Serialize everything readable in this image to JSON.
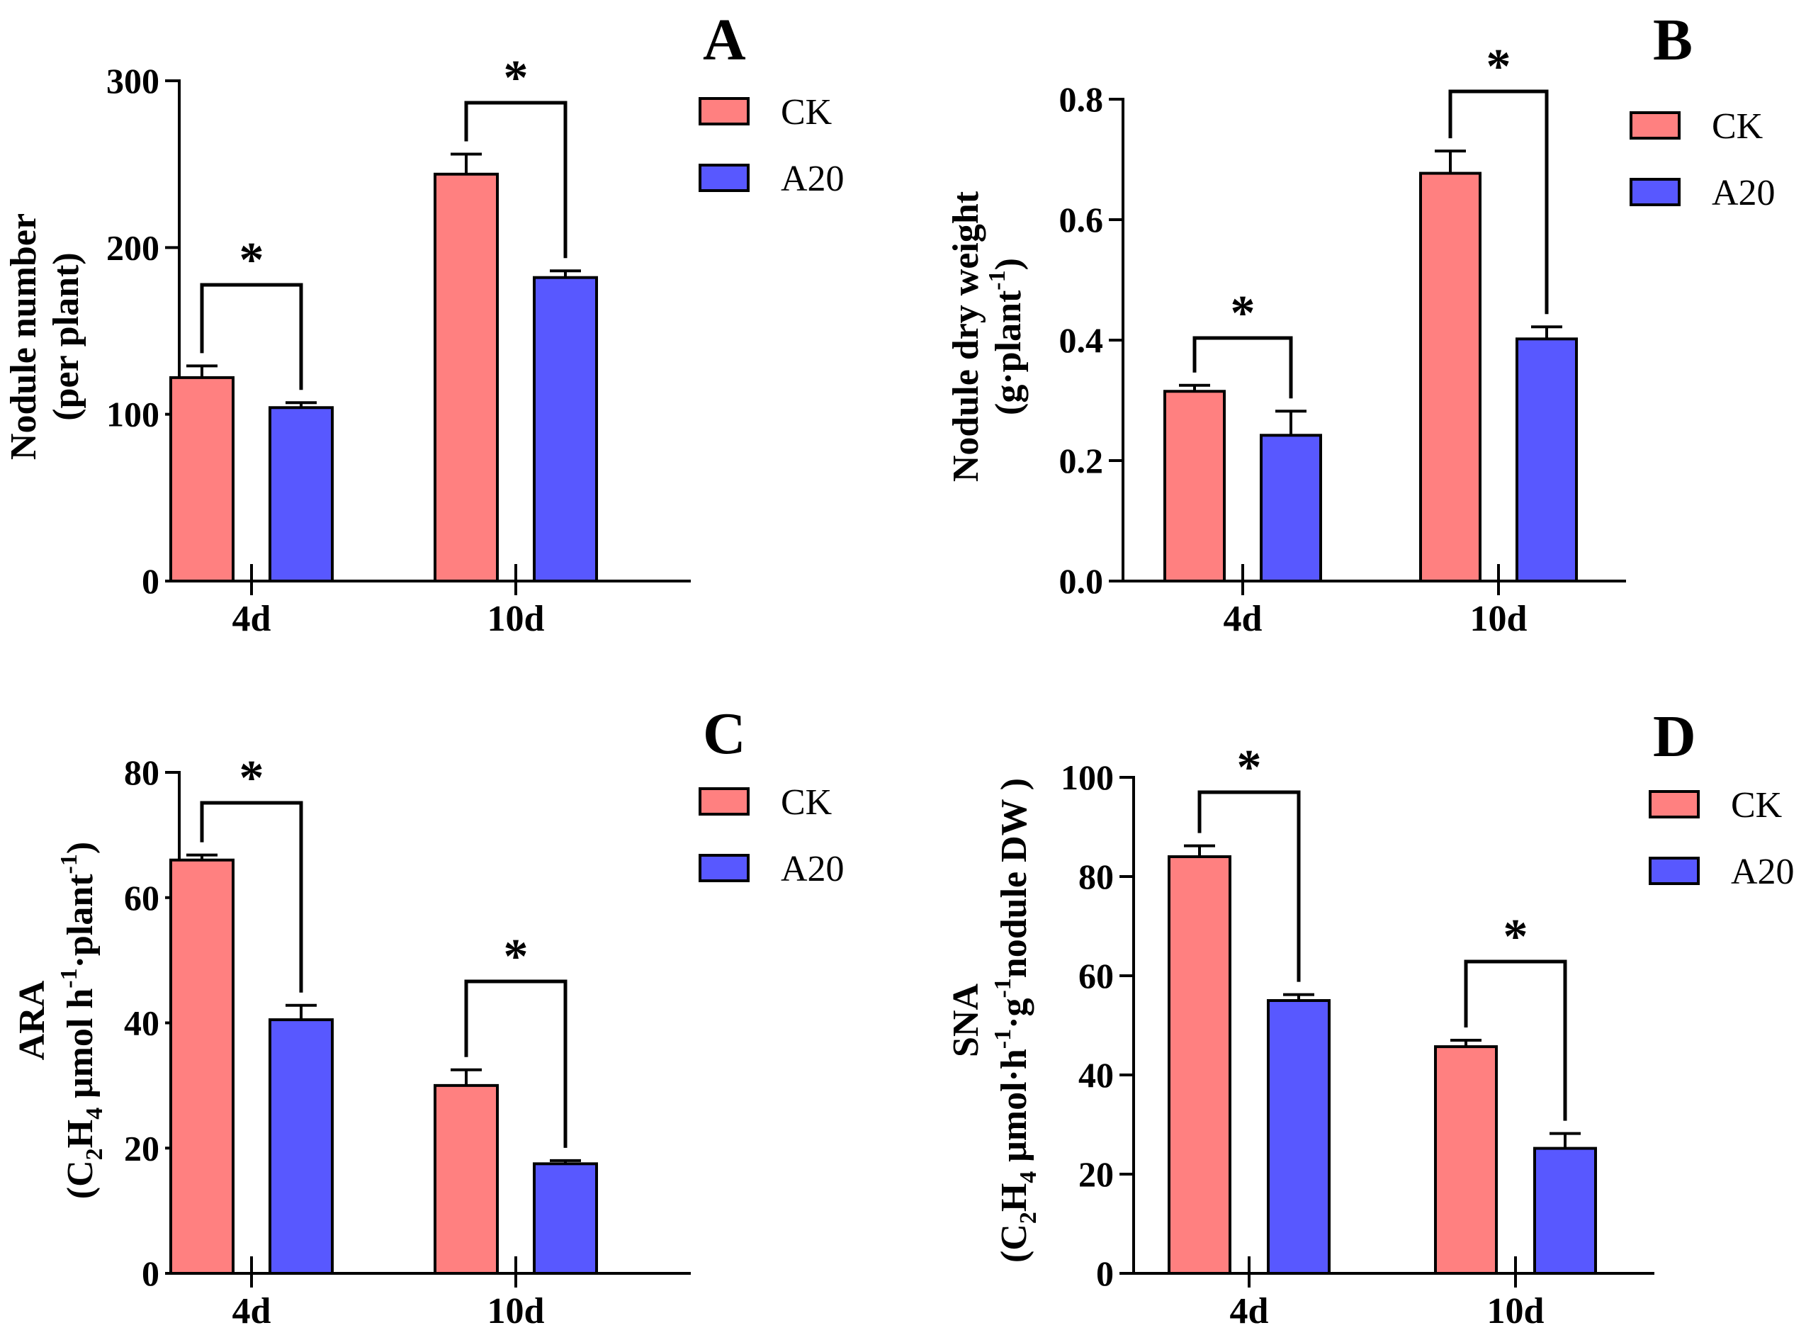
{
  "colors": {
    "ck": "#ff8080",
    "a20": "#5858ff",
    "axis": "#000000"
  },
  "legend": {
    "ck": "CK",
    "a20": "A20"
  },
  "chart_data": [
    {
      "panel": "A",
      "type": "bar",
      "categories": [
        "4d",
        "10d"
      ],
      "series": [
        {
          "name": "CK",
          "values": [
            122,
            244
          ],
          "errors": [
            7,
            12
          ]
        },
        {
          "name": "A20",
          "values": [
            104,
            182
          ],
          "errors": [
            3,
            4
          ]
        }
      ],
      "ylim": [
        0,
        300
      ],
      "yticks": [
        "0",
        "100",
        "200",
        "300"
      ],
      "ylabel_lines": [
        "Nodule number",
        "(per plant)"
      ],
      "significance": [
        "*",
        "*"
      ],
      "legend_position": "top-right"
    },
    {
      "panel": "B",
      "type": "bar",
      "categories": [
        "4d",
        "10d"
      ],
      "series": [
        {
          "name": "CK",
          "values": [
            0.315,
            0.677
          ],
          "errors": [
            0.01,
            0.037
          ]
        },
        {
          "name": "A20",
          "values": [
            0.242,
            0.402
          ],
          "errors": [
            0.04,
            0.02
          ]
        }
      ],
      "ylim": [
        0,
        0.8
      ],
      "yticks": [
        "0.0",
        "0.2",
        "0.4",
        "0.6",
        "0.8"
      ],
      "ylabel_lines": [
        "Nodule dry weight",
        "(g·plant-1)"
      ],
      "significance": [
        "*",
        "*"
      ],
      "legend_position": "top-right"
    },
    {
      "panel": "C",
      "type": "bar",
      "categories": [
        "4d",
        "10d"
      ],
      "series": [
        {
          "name": "CK",
          "values": [
            66,
            30
          ],
          "errors": [
            0.8,
            2.5
          ]
        },
        {
          "name": "A20",
          "values": [
            40.5,
            17.5
          ],
          "errors": [
            2.3,
            0.5
          ]
        }
      ],
      "ylim": [
        0,
        80
      ],
      "yticks": [
        "0",
        "20",
        "40",
        "60",
        "80"
      ],
      "ylabel_lines": [
        "ARA",
        "(C2H4 μmol h-1·plant-1)"
      ],
      "significance": [
        "*",
        "*"
      ],
      "legend_position": "top-right"
    },
    {
      "panel": "D",
      "type": "bar",
      "categories": [
        "4d",
        "10d"
      ],
      "series": [
        {
          "name": "CK",
          "values": [
            84,
            45.7
          ],
          "errors": [
            2.2,
            1.3
          ]
        },
        {
          "name": "A20",
          "values": [
            55,
            25.2
          ],
          "errors": [
            1.2,
            3
          ]
        }
      ],
      "ylim": [
        0,
        100
      ],
      "yticks": [
        "0",
        "20",
        "40",
        "60",
        "80",
        "100"
      ],
      "ylabel_lines": [
        "SNA",
        "(C2H4 μmol·h-1·g-1nodule DW )"
      ],
      "significance": [
        "*",
        "*"
      ],
      "legend_position": "top-right"
    }
  ]
}
